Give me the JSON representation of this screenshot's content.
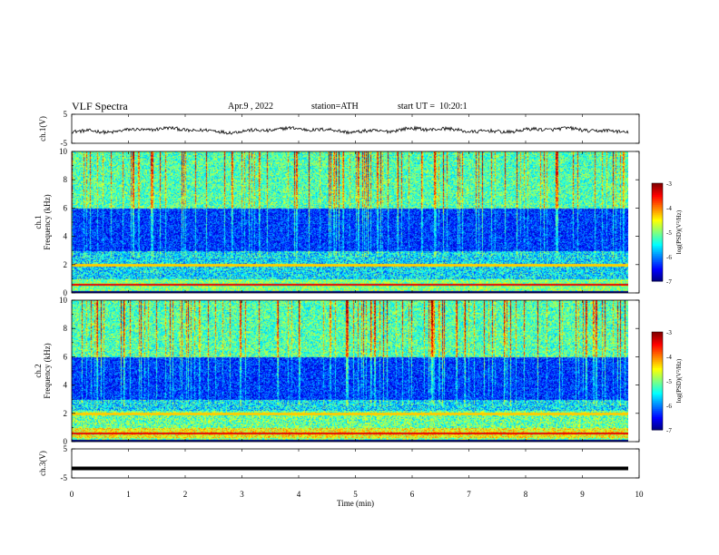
{
  "header": {
    "title": "VLF Spectra",
    "date": "Apr.9 , 2022",
    "station": "station=ATH",
    "start": "start UT =  10:20:1"
  },
  "chart_data": [
    {
      "type": "line",
      "ylabel": "ch.1(V)",
      "ylim": [
        -5,
        5
      ],
      "yticks": [
        "5",
        "-5"
      ],
      "x": [
        0,
        9.8
      ],
      "series": [
        {
          "description": "noisy waveform centered near -0.5 V",
          "mean": -0.5
        }
      ]
    },
    {
      "type": "heatmap",
      "ylabel": "ch.1\nFrequency (kHz)",
      "ylim": [
        0,
        10
      ],
      "yticks": [
        "0",
        "2",
        "4",
        "6",
        "8",
        "10"
      ],
      "colorbar": {
        "label": "log(PSD)(V²/Hz)",
        "ticks": [
          "-3",
          "-4",
          "-5",
          "-6",
          "-7"
        ],
        "range": [
          -7,
          -3
        ]
      }
    },
    {
      "type": "heatmap",
      "ylabel": "ch.2\nFrequency (kHz)",
      "ylim": [
        0,
        10
      ],
      "yticks": [
        "0",
        "2",
        "4",
        "6",
        "8",
        "10"
      ],
      "colorbar": {
        "label": "log(PSD)(V²/Hz)",
        "ticks": [
          "-3",
          "-4",
          "-5",
          "-6",
          "-7"
        ],
        "range": [
          -7,
          -3
        ]
      }
    },
    {
      "type": "line",
      "ylabel": "ch.3(V)",
      "ylim": [
        -5,
        5
      ],
      "yticks": [
        "5",
        "-5"
      ],
      "series": [
        {
          "description": "flat line",
          "value": -1.7
        }
      ]
    }
  ],
  "xaxis": {
    "label": "Time (min)",
    "ticks": [
      "0",
      "1",
      "2",
      "3",
      "4",
      "5",
      "6",
      "7",
      "8",
      "9",
      "10"
    ],
    "range": [
      0,
      10
    ]
  },
  "colors": {
    "jet": [
      "#000080",
      "#0000ff",
      "#00ffff",
      "#00ff00",
      "#ffff00",
      "#ff0000",
      "#ffffff"
    ]
  }
}
